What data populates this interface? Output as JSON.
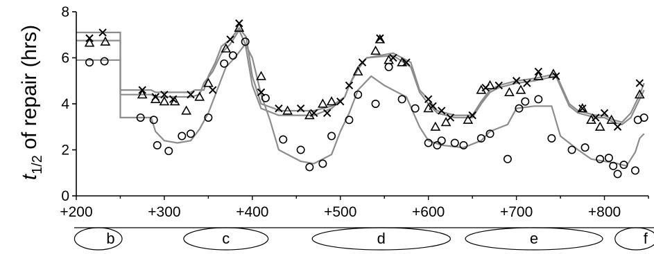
{
  "chart_data": {
    "type": "scatter",
    "title": "",
    "ylabel": {
      "t": "t",
      "sub": "1/2",
      "rest": " of repair (hrs)"
    },
    "xlabel": "",
    "xlim": [
      200,
      850
    ],
    "ylim": [
      0,
      8
    ],
    "x_ticks": [
      200,
      300,
      400,
      500,
      600,
      700,
      800
    ],
    "x_tick_labels": [
      "+200",
      "+300",
      "+400",
      "+500",
      "+600",
      "+700",
      "+800"
    ],
    "y_ticks": [
      0,
      2,
      4,
      6,
      8
    ],
    "y_tick_labels": [
      "0",
      "2",
      "4",
      "6",
      "8"
    ],
    "grid": false,
    "colors": {
      "axis": "#000000",
      "line": "#8c8c8c",
      "marker": "#000000"
    },
    "segments": [
      {
        "label": "b",
        "range": [
          198,
          252
        ]
      },
      {
        "label": "c",
        "range": [
          322,
          418
        ]
      },
      {
        "label": "d",
        "range": [
          468,
          625
        ]
      },
      {
        "label": "e",
        "range": [
          642,
          798
        ]
      },
      {
        "label": "f",
        "range": [
          812,
          860
        ]
      }
    ],
    "series": [
      {
        "marker": "x",
        "values": [
          [
            215,
            6.85
          ],
          [
            230,
            7.1
          ],
          [
            275,
            4.6
          ],
          [
            290,
            4.3
          ],
          [
            300,
            4.4
          ],
          [
            310,
            4.2
          ],
          [
            330,
            4.4
          ],
          [
            355,
            4.6
          ],
          [
            375,
            6.8
          ],
          [
            385,
            7.5
          ],
          [
            410,
            4.5
          ],
          [
            430,
            3.8
          ],
          [
            455,
            3.8
          ],
          [
            470,
            3.6
          ],
          [
            485,
            3.6
          ],
          [
            500,
            4.1
          ],
          [
            510,
            4.8
          ],
          [
            525,
            5.8
          ],
          [
            545,
            6.85
          ],
          [
            560,
            6.0
          ],
          [
            575,
            5.8
          ],
          [
            600,
            4.2
          ],
          [
            605,
            3.9
          ],
          [
            615,
            3.7
          ],
          [
            625,
            3.4
          ],
          [
            650,
            3.5
          ],
          [
            665,
            4.7
          ],
          [
            680,
            4.8
          ],
          [
            700,
            5.0
          ],
          [
            712,
            4.9
          ],
          [
            725,
            5.4
          ],
          [
            745,
            5.2
          ],
          [
            775,
            3.8
          ],
          [
            790,
            3.4
          ],
          [
            800,
            3.6
          ],
          [
            815,
            3.0
          ],
          [
            840,
            4.9
          ]
        ]
      },
      {
        "marker": "triangle",
        "values": [
          [
            215,
            6.65
          ],
          [
            233,
            6.7
          ],
          [
            275,
            4.4
          ],
          [
            290,
            4.2
          ],
          [
            300,
            4.1
          ],
          [
            312,
            4.1
          ],
          [
            325,
            3.7
          ],
          [
            340,
            4.3
          ],
          [
            350,
            4.9
          ],
          [
            370,
            6.4
          ],
          [
            385,
            7.3
          ],
          [
            410,
            5.2
          ],
          [
            440,
            3.7
          ],
          [
            465,
            3.5
          ],
          [
            480,
            4.0
          ],
          [
            490,
            4.1
          ],
          [
            520,
            5.4
          ],
          [
            540,
            6.3
          ],
          [
            545,
            6.8
          ],
          [
            555,
            5.9
          ],
          [
            570,
            5.8
          ],
          [
            600,
            3.8
          ],
          [
            608,
            3.0
          ],
          [
            620,
            3.2
          ],
          [
            645,
            3.3
          ],
          [
            660,
            4.6
          ],
          [
            670,
            4.8
          ],
          [
            692,
            4.5
          ],
          [
            705,
            4.6
          ],
          [
            725,
            5.2
          ],
          [
            742,
            5.3
          ],
          [
            775,
            3.8
          ],
          [
            785,
            3.3
          ],
          [
            795,
            3.0
          ],
          [
            808,
            3.3
          ],
          [
            840,
            4.4
          ]
        ]
      },
      {
        "marker": "circle",
        "values": [
          [
            215,
            5.8
          ],
          [
            232,
            5.85
          ],
          [
            273,
            3.4
          ],
          [
            288,
            3.3
          ],
          [
            292,
            2.2
          ],
          [
            305,
            1.95
          ],
          [
            320,
            2.6
          ],
          [
            330,
            2.7
          ],
          [
            350,
            3.4
          ],
          [
            368,
            5.75
          ],
          [
            378,
            6.1
          ],
          [
            392,
            6.7
          ],
          [
            415,
            4.25
          ],
          [
            435,
            2.45
          ],
          [
            455,
            2.0
          ],
          [
            465,
            1.25
          ],
          [
            480,
            1.4
          ],
          [
            490,
            2.6
          ],
          [
            510,
            3.3
          ],
          [
            520,
            4.4
          ],
          [
            540,
            4.0
          ],
          [
            555,
            5.6
          ],
          [
            570,
            4.2
          ],
          [
            585,
            3.8
          ],
          [
            600,
            2.3
          ],
          [
            610,
            2.2
          ],
          [
            615,
            2.4
          ],
          [
            630,
            2.3
          ],
          [
            640,
            2.2
          ],
          [
            660,
            2.5
          ],
          [
            670,
            2.7
          ],
          [
            690,
            1.6
          ],
          [
            703,
            3.8
          ],
          [
            710,
            4.1
          ],
          [
            725,
            4.2
          ],
          [
            740,
            2.5
          ],
          [
            763,
            2.0
          ],
          [
            778,
            2.1
          ],
          [
            795,
            1.6
          ],
          [
            805,
            1.65
          ],
          [
            810,
            1.3
          ],
          [
            815,
            0.95
          ],
          [
            822,
            1.35
          ],
          [
            835,
            1.1
          ],
          [
            838,
            3.3
          ],
          [
            845,
            3.4
          ]
        ]
      }
    ],
    "lines": [
      {
        "values": [
          [
            200,
            7.1
          ],
          [
            250,
            7.1
          ],
          [
            250,
            4.6
          ],
          [
            285,
            4.6
          ],
          [
            290,
            4.5
          ],
          [
            330,
            4.5
          ],
          [
            335,
            4.6
          ],
          [
            345,
            4.6
          ],
          [
            350,
            5.2
          ],
          [
            358,
            5.8
          ],
          [
            365,
            6.5
          ],
          [
            375,
            6.8
          ],
          [
            385,
            7.3
          ],
          [
            393,
            6.9
          ],
          [
            400,
            5.2
          ],
          [
            410,
            4.0
          ],
          [
            425,
            3.8
          ],
          [
            430,
            3.7
          ],
          [
            470,
            3.7
          ],
          [
            490,
            3.9
          ],
          [
            505,
            4.3
          ],
          [
            510,
            4.8
          ],
          [
            520,
            5.6
          ],
          [
            530,
            6.0
          ],
          [
            560,
            6.2
          ],
          [
            580,
            5.8
          ],
          [
            590,
            4.6
          ],
          [
            600,
            4.2
          ],
          [
            610,
            3.7
          ],
          [
            630,
            3.5
          ],
          [
            650,
            3.5
          ],
          [
            660,
            4.1
          ],
          [
            670,
            4.6
          ],
          [
            680,
            4.8
          ],
          [
            700,
            5.0
          ],
          [
            720,
            5.1
          ],
          [
            745,
            5.3
          ],
          [
            760,
            4.0
          ],
          [
            770,
            3.7
          ],
          [
            790,
            3.5
          ],
          [
            800,
            3.5
          ],
          [
            810,
            3.3
          ],
          [
            820,
            3.2
          ],
          [
            830,
            3.6
          ],
          [
            840,
            4.4
          ],
          [
            845,
            4.9
          ]
        ]
      },
      {
        "values": [
          [
            200,
            6.75
          ],
          [
            250,
            6.75
          ],
          [
            250,
            4.4
          ],
          [
            285,
            4.4
          ],
          [
            290,
            4.3
          ],
          [
            330,
            4.3
          ],
          [
            340,
            4.4
          ],
          [
            345,
            4.9
          ],
          [
            355,
            5.4
          ],
          [
            365,
            6.2
          ],
          [
            375,
            6.6
          ],
          [
            385,
            7.2
          ],
          [
            392,
            6.6
          ],
          [
            400,
            4.8
          ],
          [
            410,
            3.8
          ],
          [
            430,
            3.5
          ],
          [
            470,
            3.5
          ],
          [
            490,
            3.8
          ],
          [
            505,
            4.3
          ],
          [
            510,
            4.8
          ],
          [
            520,
            5.5
          ],
          [
            530,
            6.0
          ],
          [
            560,
            6.1
          ],
          [
            580,
            5.6
          ],
          [
            590,
            4.5
          ],
          [
            600,
            4.0
          ],
          [
            610,
            3.6
          ],
          [
            630,
            3.4
          ],
          [
            650,
            3.4
          ],
          [
            660,
            4.0
          ],
          [
            670,
            4.5
          ],
          [
            680,
            4.7
          ],
          [
            700,
            4.9
          ],
          [
            720,
            5.0
          ],
          [
            745,
            5.2
          ],
          [
            760,
            3.9
          ],
          [
            770,
            3.6
          ],
          [
            790,
            3.4
          ],
          [
            800,
            3.4
          ],
          [
            810,
            3.2
          ],
          [
            820,
            3.1
          ],
          [
            830,
            3.4
          ],
          [
            840,
            4.2
          ],
          [
            845,
            4.6
          ]
        ]
      },
      {
        "values": [
          [
            200,
            5.9
          ],
          [
            230,
            5.9
          ],
          [
            232,
            5.9
          ],
          [
            250,
            5.9
          ],
          [
            250,
            3.4
          ],
          [
            285,
            3.4
          ],
          [
            290,
            2.8
          ],
          [
            300,
            2.4
          ],
          [
            315,
            2.3
          ],
          [
            330,
            2.4
          ],
          [
            340,
            2.9
          ],
          [
            350,
            3.6
          ],
          [
            360,
            4.6
          ],
          [
            370,
            5.6
          ],
          [
            380,
            6.0
          ],
          [
            392,
            6.6
          ],
          [
            400,
            6.0
          ],
          [
            410,
            4.4
          ],
          [
            420,
            3.3
          ],
          [
            430,
            2.0
          ],
          [
            445,
            1.7
          ],
          [
            455,
            1.5
          ],
          [
            470,
            1.4
          ],
          [
            490,
            1.8
          ],
          [
            500,
            2.8
          ],
          [
            510,
            3.6
          ],
          [
            520,
            4.6
          ],
          [
            535,
            5.2
          ],
          [
            550,
            4.8
          ],
          [
            560,
            4.6
          ],
          [
            575,
            4.3
          ],
          [
            590,
            3.0
          ],
          [
            600,
            2.4
          ],
          [
            615,
            2.2
          ],
          [
            640,
            2.1
          ],
          [
            660,
            2.4
          ],
          [
            670,
            2.8
          ],
          [
            690,
            3.1
          ],
          [
            700,
            3.8
          ],
          [
            720,
            3.9
          ],
          [
            740,
            3.9
          ],
          [
            750,
            2.6
          ],
          [
            760,
            2.3
          ],
          [
            770,
            2.0
          ],
          [
            785,
            1.6
          ],
          [
            800,
            1.5
          ],
          [
            815,
            1.4
          ],
          [
            825,
            1.3
          ],
          [
            835,
            1.9
          ],
          [
            840,
            2.5
          ],
          [
            845,
            2.7
          ]
        ]
      }
    ]
  }
}
